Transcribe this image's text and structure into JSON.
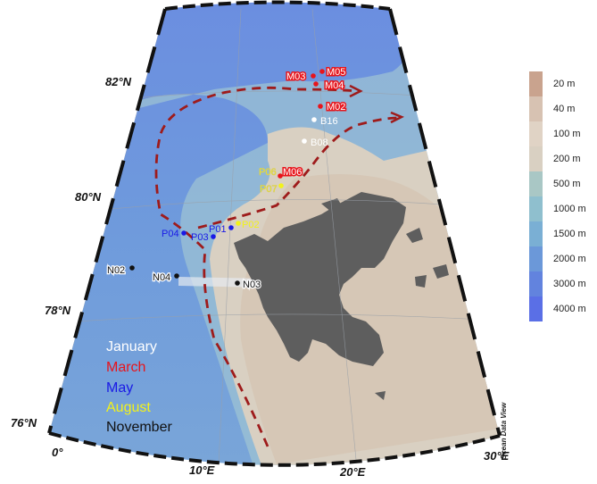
{
  "lat_labels": [
    "82°N",
    "80°N",
    "78°N",
    "76°N"
  ],
  "lon_labels": [
    "0°",
    "10°E",
    "20°E",
    "30°E"
  ],
  "months": [
    {
      "name": "January",
      "color": "#ffffff"
    },
    {
      "name": "March",
      "color": "#e8141b"
    },
    {
      "name": "May",
      "color": "#1a1ae6"
    },
    {
      "name": "August",
      "color": "#f2f21a"
    },
    {
      "name": "November",
      "color": "#111111"
    }
  ],
  "stations": [
    {
      "name": "M05",
      "month": "March"
    },
    {
      "name": "M03",
      "month": "March"
    },
    {
      "name": "M04",
      "month": "March"
    },
    {
      "name": "M02",
      "month": "March"
    },
    {
      "name": "B16",
      "month": "January"
    },
    {
      "name": "B08",
      "month": "January"
    },
    {
      "name": "M06",
      "month": "March"
    },
    {
      "name": "P06",
      "month": "August"
    },
    {
      "name": "P07",
      "month": "August"
    },
    {
      "name": "P01",
      "month": "May"
    },
    {
      "name": "P02",
      "month": "August"
    },
    {
      "name": "P03",
      "month": "May"
    },
    {
      "name": "P04",
      "month": "May"
    },
    {
      "name": "N02",
      "month": "November"
    },
    {
      "name": "N04",
      "month": "November"
    },
    {
      "name": "N03",
      "month": "November"
    }
  ],
  "depth_scale": [
    {
      "label": "20 m",
      "color": "#c9a38e"
    },
    {
      "label": "40 m",
      "color": "#d7c2b2"
    },
    {
      "label": "100 m",
      "color": "#e0d3c5"
    },
    {
      "label": "200 m",
      "color": "#d9d0c2"
    },
    {
      "label": "500 m",
      "color": "#a9c7c5"
    },
    {
      "label": "1000 m",
      "color": "#8fbfce"
    },
    {
      "label": "1500 m",
      "color": "#7aafd4"
    },
    {
      "label": "2000 m",
      "color": "#6b98d9"
    },
    {
      "label": "3000 m",
      "color": "#6283de"
    },
    {
      "label": "4000 m",
      "color": "#5a6fe6"
    }
  ],
  "credit": "Ocean Data View"
}
